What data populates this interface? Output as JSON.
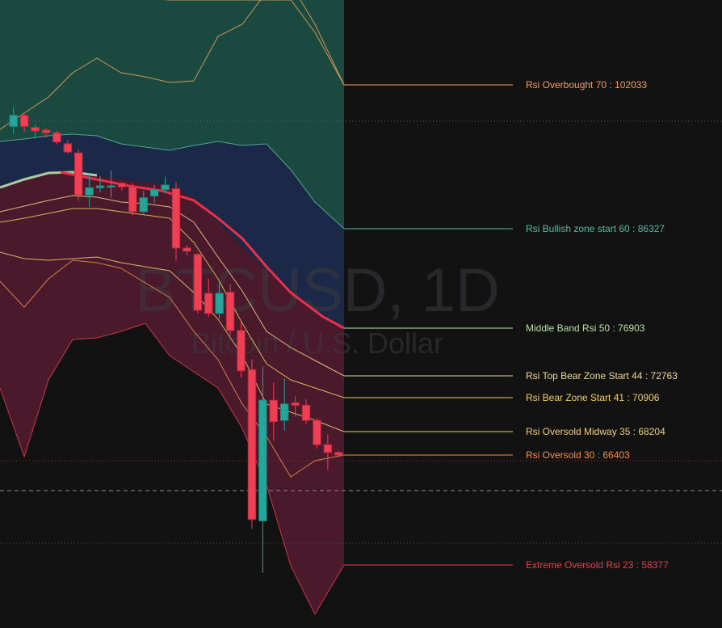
{
  "watermark": {
    "symbol": "BTCUSD, 1D",
    "description": "Bitcoin / U.S. Dollar"
  },
  "colors": {
    "background": "#121212",
    "overbought_zone": "#1a4a3f",
    "bullish_zone": "#1c2848",
    "bear_zone": "#4a1a2c",
    "overbought_line": "#f0a060",
    "bullish_line": "#5ab8a0",
    "middle_band": "#b8e0a8",
    "top_bear_line": "#f0d890",
    "bear_line": "#f0d060",
    "oversold_midway_line": "#f0d070",
    "oversold_line": "#f09050",
    "extreme_oversold_line": "#e04050",
    "ema": "#e8304a",
    "candle_up": "#26a69a",
    "candle_down": "#ef3f55"
  },
  "chart_data": {
    "type": "candlestick",
    "title": "BTCUSD, 1D",
    "subtitle": "Bitcoin / U.S. Dollar",
    "bands": [
      {
        "label": "Rsi Overbought 70 : 102033",
        "rsi": 70,
        "price": 102033,
        "color": "#f0a060"
      },
      {
        "label": "Rsi Bullish zone start 60 :  86327",
        "rsi": 60,
        "price": 86327,
        "color": "#5ab8a0"
      },
      {
        "label": "Middle Band Rsi 50 : 76903",
        "rsi": 50,
        "price": 76903,
        "color": "#b8e0a8"
      },
      {
        "label": "Rsi Top Bear Zone Start 44 : 72763",
        "rsi": 44,
        "price": 72763,
        "color": "#f0d890"
      },
      {
        "label": "Rsi Bear Zone Start 41 : 70906",
        "rsi": 41,
        "price": 70906,
        "color": "#f0d060"
      },
      {
        "label": "Rsi Oversold Midway 35 :  68204",
        "rsi": 35,
        "price": 68204,
        "color": "#f0d070"
      },
      {
        "label": "Rsi Oversold 30 :  66403",
        "rsi": 30,
        "price": 66403,
        "color": "#f09050"
      },
      {
        "label": "Extreme Oversold Rsi 23 : 58377",
        "rsi": 23,
        "price": 58377,
        "color": "#e04050"
      }
    ],
    "candles": [
      {
        "o": 97500,
        "c": 98700,
        "h": 99600,
        "l": 96700
      },
      {
        "o": 98700,
        "c": 97500,
        "h": 99000,
        "l": 96900
      },
      {
        "o": 97400,
        "c": 97000,
        "h": 97700,
        "l": 96200
      },
      {
        "o": 97100,
        "c": 96800,
        "h": 97300,
        "l": 96300
      },
      {
        "o": 96800,
        "c": 95800,
        "h": 97000,
        "l": 95500
      },
      {
        "o": 95600,
        "c": 94700,
        "h": 96000,
        "l": 94500
      },
      {
        "o": 94600,
        "c": 90000,
        "h": 95000,
        "l": 89300
      },
      {
        "o": 90000,
        "c": 90800,
        "h": 92300,
        "l": 88700
      },
      {
        "o": 90800,
        "c": 91000,
        "h": 92100,
        "l": 90300
      },
      {
        "o": 91000,
        "c": 91000,
        "h": 92700,
        "l": 89700
      },
      {
        "o": 91300,
        "c": 90900,
        "h": 91400,
        "l": 90500
      },
      {
        "o": 90900,
        "c": 88200,
        "h": 91300,
        "l": 87800
      },
      {
        "o": 88200,
        "c": 89700,
        "h": 90500,
        "l": 87800
      },
      {
        "o": 89900,
        "c": 90600,
        "h": 91100,
        "l": 89100
      },
      {
        "o": 90600,
        "c": 91100,
        "h": 92000,
        "l": 90200
      },
      {
        "o": 90700,
        "c": 84500,
        "h": 91400,
        "l": 83300
      },
      {
        "o": 84500,
        "c": 84200,
        "h": 84800,
        "l": 83800
      },
      {
        "o": 83900,
        "c": 78600,
        "h": 84000,
        "l": 78300
      },
      {
        "o": 80200,
        "c": 78300,
        "h": 81600,
        "l": 78000
      },
      {
        "o": 78300,
        "c": 80200,
        "h": 81400,
        "l": 77800
      },
      {
        "o": 80300,
        "c": 76700,
        "h": 81100,
        "l": 76200
      },
      {
        "o": 76700,
        "c": 73200,
        "h": 77500,
        "l": 72600
      },
      {
        "o": 73300,
        "c": 61700,
        "h": 74200,
        "l": 61000
      },
      {
        "o": 61600,
        "c": 70700,
        "h": 73600,
        "l": 57800
      },
      {
        "o": 70700,
        "c": 69000,
        "h": 72200,
        "l": 67500
      },
      {
        "o": 69100,
        "c": 70400,
        "h": 72500,
        "l": 68300
      },
      {
        "o": 70500,
        "c": 70300,
        "h": 71000,
        "l": 69400
      },
      {
        "o": 70300,
        "c": 69100,
        "h": 70800,
        "l": 68800
      },
      {
        "o": 69100,
        "c": 67200,
        "h": 69300,
        "l": 66900
      },
      {
        "o": 67200,
        "c": 66600,
        "h": 68000,
        "l": 65300
      },
      {
        "o": 66600,
        "c": 66400,
        "h": 66700,
        "l": 66300
      }
    ]
  }
}
